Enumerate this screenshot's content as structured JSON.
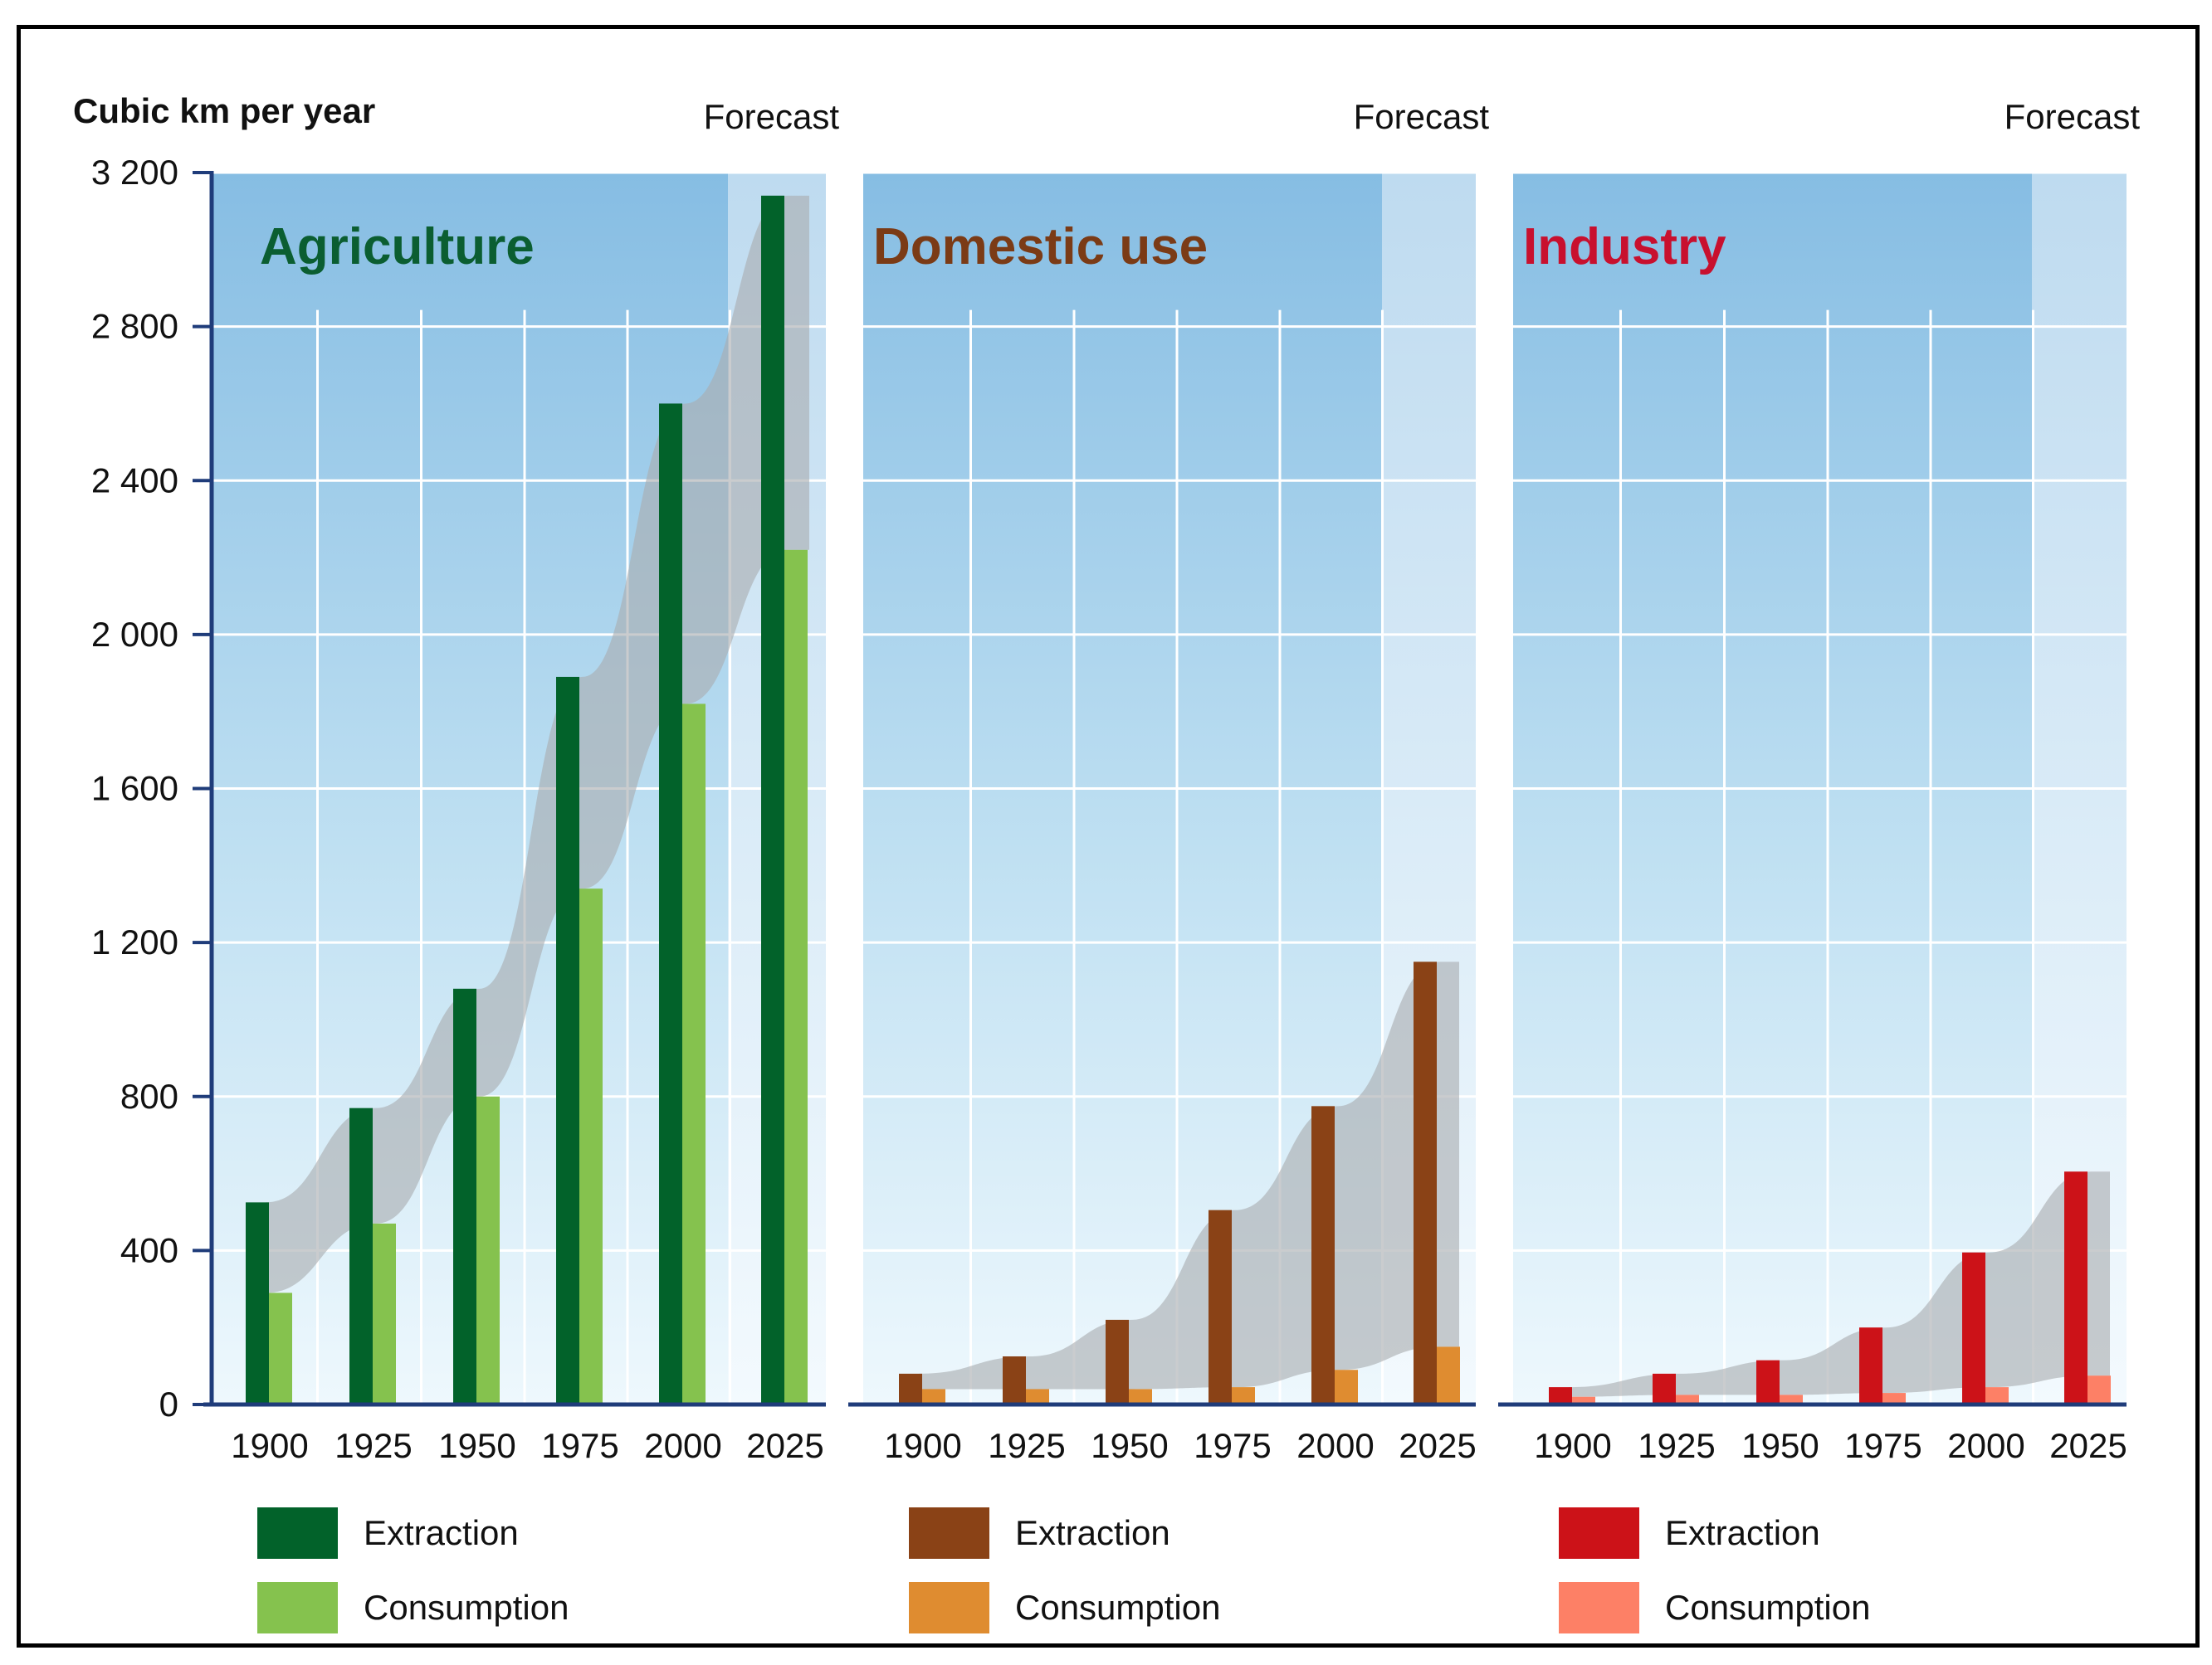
{
  "chart_data": {
    "type": "bar",
    "ylabel": "Cubic km per year",
    "ylim": [
      0,
      3200
    ],
    "yticks": [
      "3 200",
      "2 800",
      "2 400",
      "2 000",
      "1 600",
      "1 200",
      "800",
      "400",
      "0"
    ],
    "categories": [
      "1900",
      "1925",
      "1950",
      "1975",
      "2000",
      "2025"
    ],
    "forecast_label": "Forecast",
    "panels": [
      {
        "title": "Agriculture",
        "title_color": "#0b5e31",
        "series": [
          {
            "name": "Extraction",
            "color": "#02622a",
            "values": [
              525,
              770,
              1080,
              1890,
              2600,
              3140
            ]
          },
          {
            "name": "Consumption",
            "color": "#85c24e",
            "values": [
              290,
              470,
              800,
              1340,
              1820,
              2220
            ]
          }
        ]
      },
      {
        "title": "Domestic use",
        "title_color": "#7b3b16",
        "series": [
          {
            "name": "Extraction",
            "color": "#8a4216",
            "values": [
              80,
              125,
              220,
              505,
              775,
              1150
            ]
          },
          {
            "name": "Consumption",
            "color": "#df8c30",
            "values": [
              40,
              40,
              40,
              45,
              90,
              150
            ]
          }
        ]
      },
      {
        "title": "Industry",
        "title_color": "#c8102e",
        "series": [
          {
            "name": "Extraction",
            "color": "#cc1218",
            "values": [
              45,
              80,
              115,
              200,
              395,
              605
            ]
          },
          {
            "name": "Consumption",
            "color": "#fd8066",
            "values": [
              20,
              25,
              25,
              30,
              45,
              75
            ]
          }
        ]
      }
    ]
  }
}
